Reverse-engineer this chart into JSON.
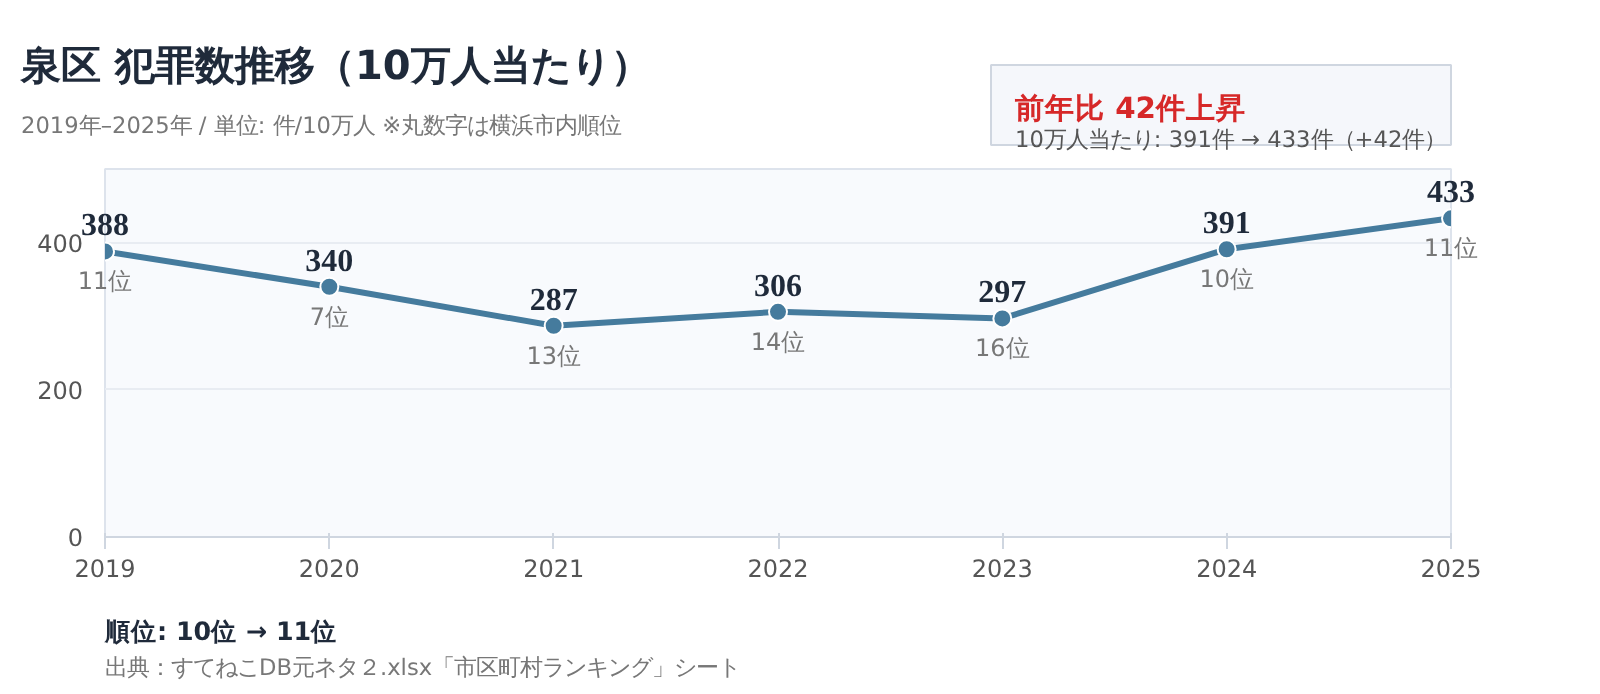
{
  "chart_data": {
    "type": "line",
    "title": "泉区 犯罪数推移（10万人当たり）",
    "subtitle": "2019年–2025年 / 単位: 件/10万人 ※丸数字は横浜市内順位",
    "x": [
      2019,
      2020,
      2021,
      2022,
      2023,
      2024,
      2025
    ],
    "series": [
      {
        "color": "#457b9d",
        "values": [
          388,
          340,
          287,
          306,
          297,
          391,
          433
        ]
      }
    ],
    "xlim": [
      2019,
      2025
    ],
    "xticks": [
      2019,
      2020,
      2021,
      2022,
      2023,
      2024,
      2025
    ],
    "ylim": [
      0,
      500
    ],
    "yticks": [
      0,
      200,
      400
    ],
    "grid": "y",
    "marker": "circle",
    "data_labels": true,
    "annotations": [
      "前年比 42件上昇",
      "10万人当たり: 391件 → 433件（+42件）",
      "順位: 10位 → 11位",
      "出典：すてねこDB元ネタ２.xlsx「市区町村ランキング」シート",
      {
        "text": "11位",
        "x": 2019,
        "y": 388
      },
      {
        "text": "7位",
        "x": 2020,
        "y": 340
      },
      {
        "text": "13位",
        "x": 2021,
        "y": 287
      },
      {
        "text": "14位",
        "x": 2022,
        "y": 306
      },
      {
        "text": "16位",
        "x": 2023,
        "y": 297
      },
      {
        "text": "10位",
        "x": 2024,
        "y": 391
      },
      {
        "text": "11位",
        "x": 2025,
        "y": 433
      }
    ]
  }
}
